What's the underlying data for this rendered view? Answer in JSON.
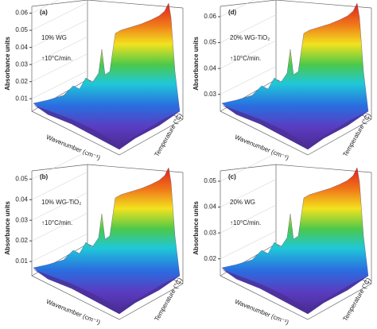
{
  "chart_data": [
    {
      "type": "surface3d",
      "panel_label": "(a)",
      "annotation": "10% WG",
      "rate": "↑10°C/min.",
      "zlabel": "Absorbance units",
      "xlabel": "Wavenumber (cm⁻¹)",
      "ylabel": "Temperature (°C)",
      "zlim": [
        0.005,
        0.064
      ],
      "zticks": [
        0.01,
        0.02,
        0.03,
        0.04,
        0.05,
        0.06
      ]
    },
    {
      "type": "surface3d",
      "panel_label": "(d)",
      "annotation": "20% WG-TiO₂",
      "rate": "↑10°C/min.",
      "zlabel": "Absorbance units",
      "xlabel": "Wavenumber (cm⁻¹)",
      "ylabel": "Temperature (°C)",
      "zlim": [
        0.025,
        0.064
      ],
      "zticks": [
        0.03,
        0.04,
        0.05,
        0.06
      ]
    },
    {
      "type": "surface3d",
      "panel_label": "(b)",
      "annotation": "10% WG-TiO₂",
      "rate": "↑10°C/min.",
      "zlabel": "Absorbance units",
      "xlabel": "Wavenumber (cm⁻¹)",
      "ylabel": "Temperature (°C)",
      "zlim": [
        0.005,
        0.054
      ],
      "zticks": [
        0.01,
        0.02,
        0.03,
        0.04,
        0.05
      ]
    },
    {
      "type": "surface3d",
      "panel_label": "(c)",
      "annotation": "20% WG",
      "rate": "↑10°C/min.",
      "zlabel": "Absorbance units",
      "xlabel": "Wavenumber (cm⁻¹)",
      "ylabel": "Temperature (°C)",
      "zlim": [
        0.015,
        0.054
      ],
      "zticks": [
        0.02,
        0.03,
        0.04,
        0.05
      ]
    }
  ]
}
